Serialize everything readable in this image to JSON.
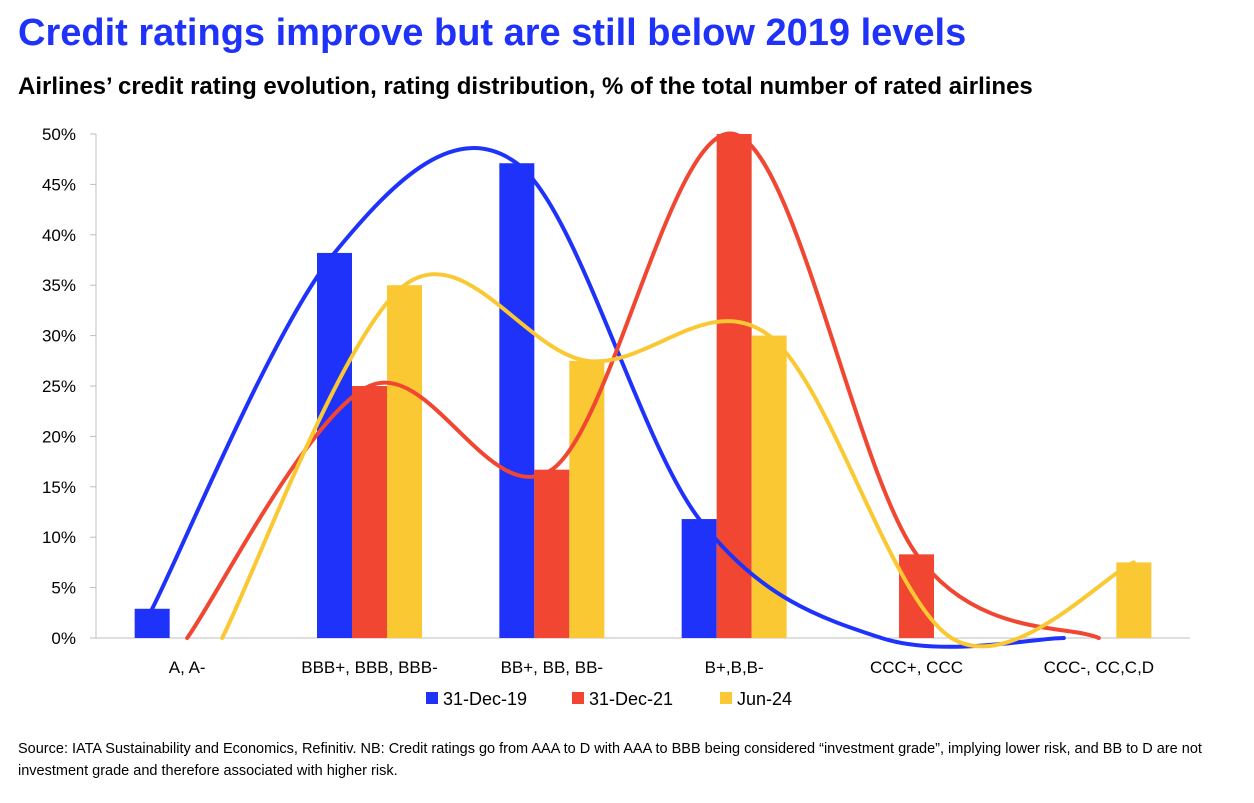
{
  "title": "Credit ratings improve but are still below 2019 levels",
  "subtitle": "Airlines’ credit rating evolution, rating distribution, % of the total number of rated airlines",
  "source": "Source: IATA Sustainability and Economics, Refinitiv. NB: Credit ratings go from AAA to D with AAA to BBB being considered “investment grade”, implying lower risk, and BB to D are not investment grade and therefore associated with higher risk.",
  "colors": {
    "title": "#1e32fa"
  },
  "chart_data": {
    "type": "bar",
    "categories": [
      "A, A-",
      "BBB+, BBB, BBB-",
      "BB+, BB, BB-",
      "B+,B,B-",
      "CCC+, CCC",
      "CCC-, CC,C,D"
    ],
    "series": [
      {
        "name": "31-Dec-19",
        "color": "#1e32fa",
        "values": [
          2.9,
          38.2,
          47.1,
          11.8,
          0,
          0
        ]
      },
      {
        "name": "31-Dec-21",
        "color": "#f04632",
        "values": [
          0,
          25.0,
          16.7,
          50.0,
          8.3,
          0
        ]
      },
      {
        "name": "Jun-24",
        "color": "#fac832",
        "values": [
          0,
          35.0,
          27.5,
          30.0,
          0,
          7.5
        ]
      }
    ],
    "trend_lines": "smoothed curve per series",
    "yticks": [
      "0%",
      "5%",
      "10%",
      "15%",
      "20%",
      "25%",
      "30%",
      "35%",
      "40%",
      "45%",
      "50%"
    ],
    "ylim": [
      0,
      50
    ],
    "xlabel": "",
    "ylabel": "",
    "legend_position": "bottom",
    "grid": false
  }
}
